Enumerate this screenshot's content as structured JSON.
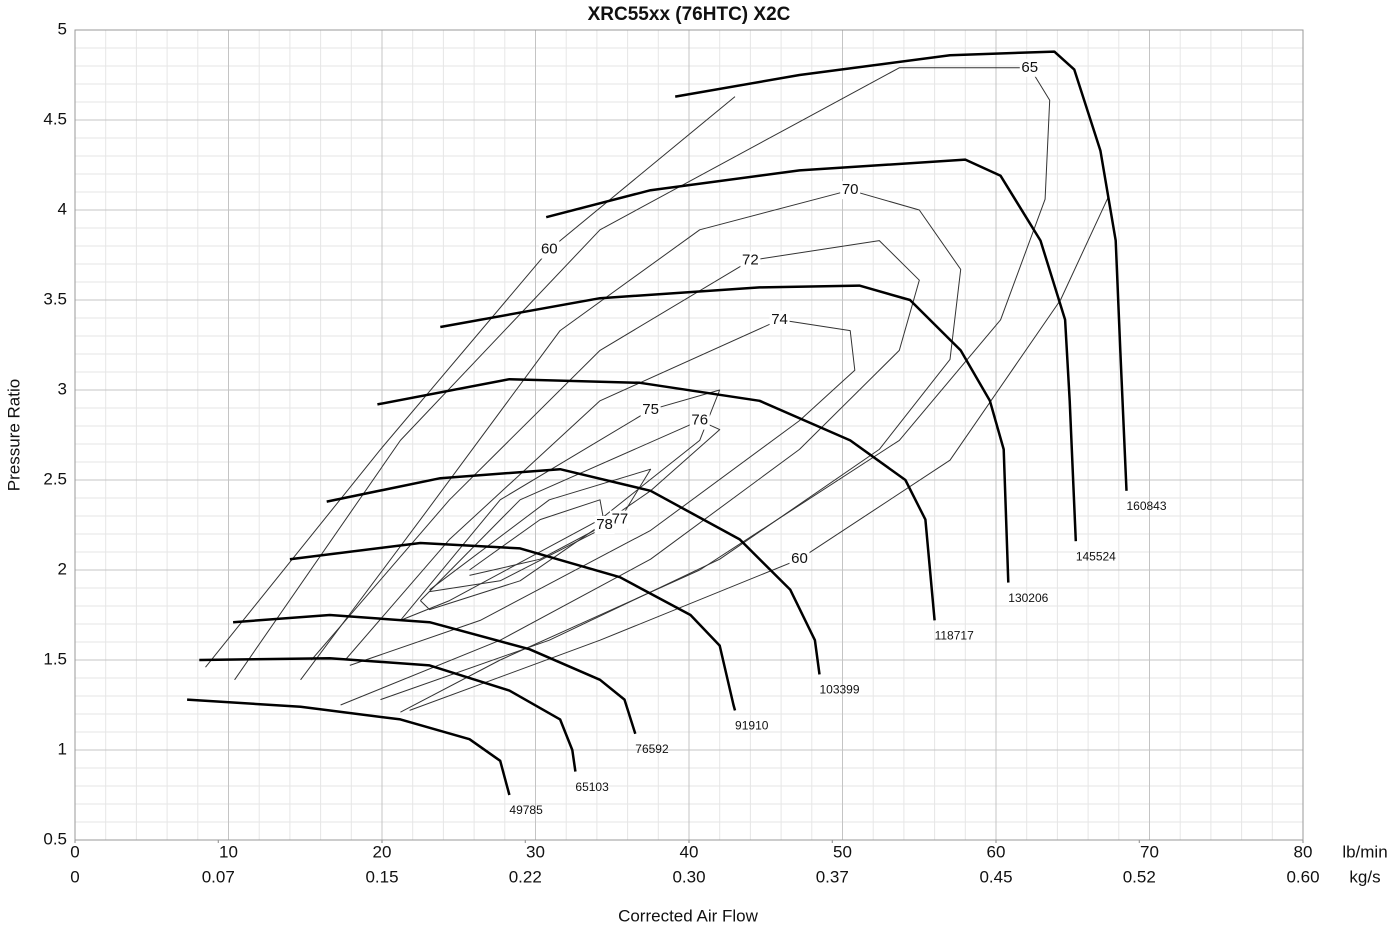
{
  "chart_data": {
    "type": "line",
    "title": "XRC55xx (76HTC) X2C",
    "xlabel": "Corrected Air Flow",
    "ylabel": "Pressure Ratio",
    "x_unit": "lb/min",
    "x2_unit": "kg/s",
    "xlim": [
      0,
      80
    ],
    "xticks": [
      0,
      10,
      20,
      30,
      40,
      50,
      60,
      70,
      80
    ],
    "x2lim": [
      0,
      0.6
    ],
    "x2ticks": [
      0,
      0.07,
      0.15,
      0.22,
      {
        "value": 0.3,
        "label": "0.30"
      },
      0.37,
      0.45,
      0.52,
      {
        "value": 0.6,
        "label": "0.60"
      }
    ],
    "ylim": [
      0.5,
      5
    ],
    "yticks": [
      0.5,
      1,
      1.5,
      2,
      2.5,
      3,
      3.5,
      4,
      4.5,
      5
    ],
    "grid": true,
    "minor_grid": true,
    "speed_lines": [
      {
        "name": "49785",
        "color": "#000000",
        "x": [
          7.3,
          14.7,
          21.2,
          25.7,
          27.7,
          28.3
        ],
        "y": [
          1.28,
          1.24,
          1.17,
          1.06,
          0.94,
          0.75
        ]
      },
      {
        "name": "65103",
        "color": "#000000",
        "x": [
          8.1,
          16.6,
          23.1,
          28.3,
          31.6,
          32.4,
          32.6
        ],
        "y": [
          1.5,
          1.51,
          1.47,
          1.33,
          1.17,
          1.0,
          0.88
        ]
      },
      {
        "name": "76592",
        "color": "#000000",
        "x": [
          10.3,
          16.6,
          23.1,
          29.6,
          34.2,
          35.8,
          36.5
        ],
        "y": [
          1.71,
          1.75,
          1.71,
          1.56,
          1.39,
          1.28,
          1.09
        ]
      },
      {
        "name": "91910",
        "color": "#000000",
        "x": [
          14.0,
          22.5,
          29.0,
          35.5,
          40.1,
          42.0,
          42.9,
          43.0
        ],
        "y": [
          2.06,
          2.15,
          2.12,
          1.96,
          1.75,
          1.58,
          1.25,
          1.22
        ]
      },
      {
        "name": "103399",
        "color": "#000000",
        "x": [
          16.4,
          23.8,
          31.6,
          37.5,
          43.3,
          46.6,
          48.2,
          48.5
        ],
        "y": [
          2.38,
          2.51,
          2.56,
          2.44,
          2.17,
          1.89,
          1.61,
          1.42
        ]
      },
      {
        "name": "118717",
        "color": "#000000",
        "x": [
          19.7,
          28.3,
          36.8,
          44.6,
          50.5,
          54.1,
          55.4,
          56.0
        ],
        "y": [
          2.92,
          3.06,
          3.04,
          2.94,
          2.72,
          2.5,
          2.28,
          1.72
        ]
      },
      {
        "name": "130206",
        "color": "#000000",
        "x": [
          23.8,
          34.2,
          44.6,
          51.1,
          54.4,
          57.7,
          59.6,
          60.5,
          60.8
        ],
        "y": [
          3.35,
          3.51,
          3.57,
          3.58,
          3.5,
          3.22,
          2.94,
          2.67,
          1.93
        ]
      },
      {
        "name": "145524",
        "color": "#000000",
        "x": [
          30.7,
          37.5,
          47.2,
          58.0,
          60.3,
          62.9,
          64.5,
          64.8,
          65.2
        ],
        "y": [
          3.96,
          4.11,
          4.22,
          4.28,
          4.19,
          3.83,
          3.39,
          2.94,
          2.16
        ]
      },
      {
        "name": "160843",
        "color": "#000000",
        "x": [
          39.1,
          47.2,
          57.0,
          63.8,
          65.1,
          66.8,
          67.8,
          68.1,
          68.5
        ],
        "y": [
          4.63,
          4.75,
          4.86,
          4.88,
          4.78,
          4.33,
          3.83,
          3.22,
          2.44
        ]
      }
    ],
    "efficiency_contours": [
      {
        "name": "60",
        "color": "#333333",
        "x": [
          8.5,
          19.9,
          30.9,
          43.0
        ],
        "y": [
          1.46,
          2.67,
          3.78,
          4.63
        ]
      },
      {
        "name": "60",
        "color": "#333333",
        "x": [
          67.3,
          64.2,
          57.0,
          47.2,
          34.2,
          21.8
        ],
        "y": [
          4.07,
          3.5,
          2.61,
          2.06,
          1.61,
          1.22
        ]
      },
      {
        "name": "65",
        "color": "#333333",
        "x": [
          10.4,
          21.2,
          34.2,
          53.7,
          62.2,
          63.5,
          63.2,
          60.3,
          53.7,
          40.7,
          27.7,
          21.2
        ],
        "y": [
          1.39,
          2.72,
          3.89,
          4.79,
          4.79,
          4.61,
          4.06,
          3.39,
          2.72,
          2.0,
          1.5,
          1.21
        ]
      },
      {
        "name": "70",
        "color": "#333333",
        "x": [
          14.7,
          22.5,
          31.6,
          40.7,
          50.5,
          55.0,
          57.7,
          57.0,
          52.4,
          42.0,
          30.9,
          19.9
        ],
        "y": [
          1.39,
          2.28,
          3.33,
          3.89,
          4.11,
          4.0,
          3.67,
          3.17,
          2.67,
          2.06,
          1.61,
          1.28
        ]
      },
      {
        "name": "72",
        "color": "#333333",
        "x": [
          15.4,
          24.4,
          34.2,
          44.0,
          52.4,
          55.0,
          53.7,
          47.2,
          37.5,
          27.7,
          17.3
        ],
        "y": [
          1.5,
          2.39,
          3.22,
          3.72,
          3.83,
          3.61,
          3.22,
          2.67,
          2.06,
          1.61,
          1.25
        ]
      },
      {
        "name": "74",
        "color": "#333333",
        "x": [
          17.6,
          24.4,
          34.2,
          45.9,
          50.5,
          50.8,
          47.2,
          37.5,
          26.4,
          17.9
        ],
        "y": [
          1.5,
          2.17,
          2.94,
          3.39,
          3.33,
          3.11,
          2.83,
          2.22,
          1.72,
          1.47
        ]
      },
      {
        "name": "75",
        "color": "#333333",
        "x": [
          21.2,
          27.7,
          37.5,
          42.0,
          40.7,
          34.2,
          24.4,
          21.2
        ],
        "y": [
          1.72,
          2.39,
          2.89,
          3.0,
          2.72,
          2.28,
          1.83,
          1.72
        ]
      },
      {
        "name": "76",
        "color": "#333333",
        "x": [
          22.5,
          29.0,
          40.7,
          42.0,
          37.5,
          29.0,
          23.1,
          22.5
        ],
        "y": [
          1.83,
          2.39,
          2.83,
          2.78,
          2.44,
          1.94,
          1.78,
          1.83
        ]
      },
      {
        "name": "77",
        "color": "#333333",
        "x": [
          23.1,
          30.9,
          37.5,
          35.5,
          27.7,
          23.1
        ],
        "y": [
          1.89,
          2.39,
          2.56,
          2.28,
          1.94,
          1.88
        ]
      },
      {
        "name": "78",
        "color": "#333333",
        "x": [
          25.7,
          30.3,
          34.2,
          34.5,
          30.3,
          25.7
        ],
        "y": [
          2.0,
          2.28,
          2.39,
          2.25,
          2.06,
          1.97
        ]
      }
    ]
  }
}
